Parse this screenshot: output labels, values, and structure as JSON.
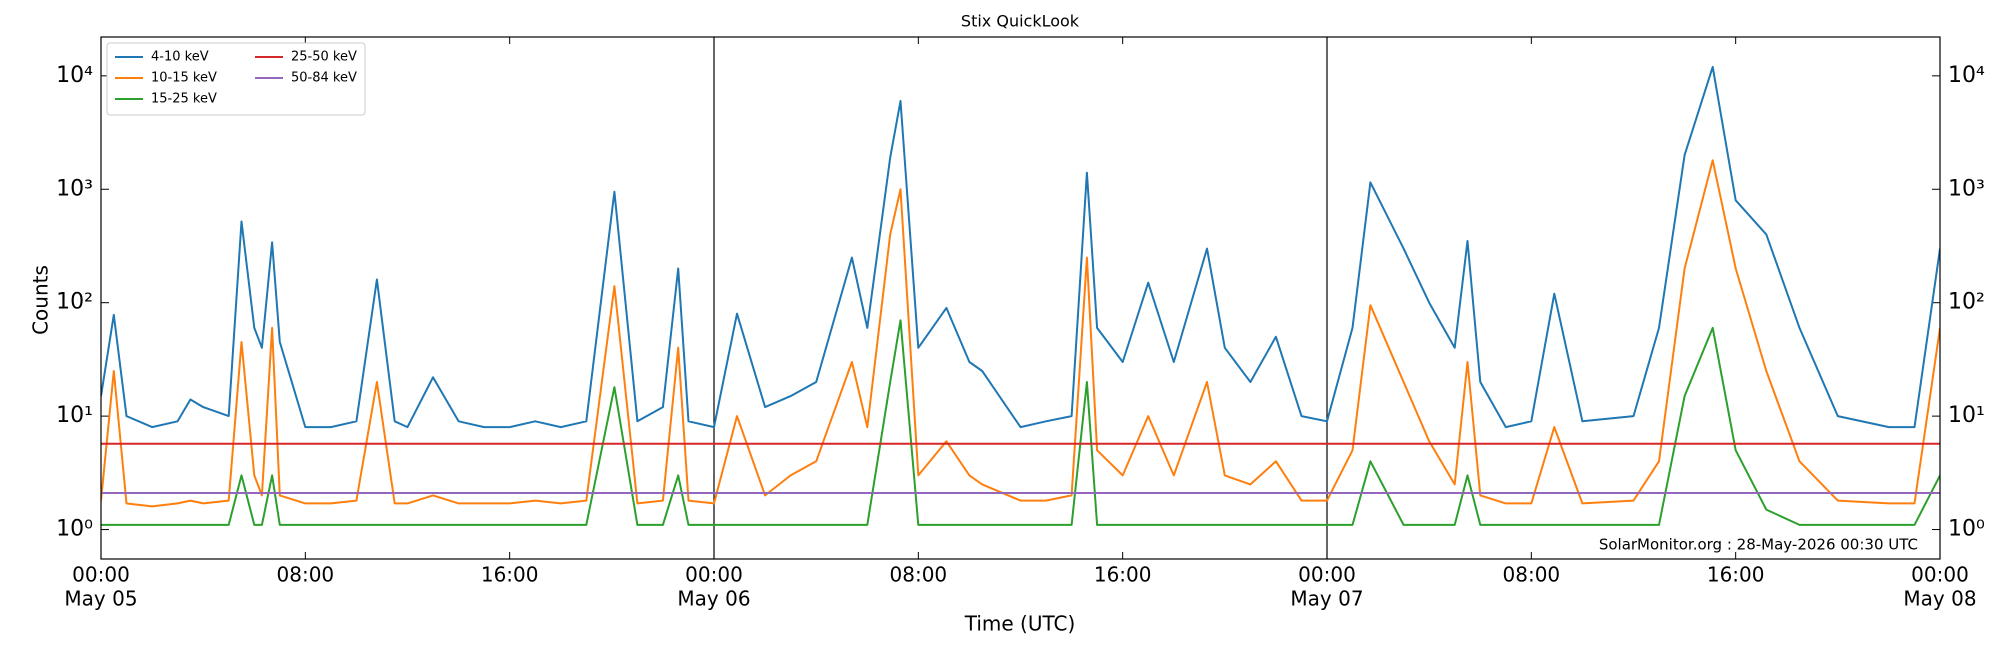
{
  "chart_data": {
    "type": "line",
    "title": "Stix QuickLook",
    "xlabel": "Time (UTC)",
    "ylabel": "Counts",
    "annotation": "SolarMonitor.org : 28-May-2026 00:30 UTC",
    "log_y": true,
    "legend": "upper left",
    "xlim": [
      0,
      72
    ],
    "ylim": [
      0.55,
      22000
    ],
    "xticks": [
      {
        "value": 0,
        "label": "00:00"
      },
      {
        "value": 8,
        "label": "08:00"
      },
      {
        "value": 16,
        "label": "16:00"
      },
      {
        "value": 24,
        "label": "00:00"
      },
      {
        "value": 32,
        "label": "08:00"
      },
      {
        "value": 40,
        "label": "16:00"
      },
      {
        "value": 48,
        "label": "00:00"
      },
      {
        "value": 56,
        "label": "08:00"
      },
      {
        "value": 64,
        "label": "16:00"
      },
      {
        "value": 72,
        "label": "00:00"
      }
    ],
    "date_ticks": [
      {
        "value": 0,
        "label": "May 05"
      },
      {
        "value": 24,
        "label": "May 06"
      },
      {
        "value": 48,
        "label": "May 07"
      },
      {
        "value": 72,
        "label": "May 08"
      }
    ],
    "yticks": [
      {
        "value": 1,
        "label": "10⁰"
      },
      {
        "value": 10,
        "label": "10¹"
      },
      {
        "value": 100,
        "label": "10²"
      },
      {
        "value": 1000,
        "label": "10³"
      },
      {
        "value": 10000,
        "label": "10⁴"
      }
    ],
    "x": [
      0,
      0.5,
      1,
      2,
      3,
      3.5,
      4,
      5,
      5.5,
      6,
      6.3,
      6.7,
      7,
      8,
      9,
      10,
      10.8,
      11.5,
      12,
      13,
      14,
      15,
      16,
      17,
      18,
      19,
      20.1,
      21,
      22,
      22.6,
      23,
      24,
      24.9,
      26,
      27,
      28,
      29.4,
      30,
      30.9,
      31.3,
      32,
      33.1,
      34,
      34.5,
      36,
      37,
      38,
      38.6,
      39,
      40,
      41,
      42,
      43.3,
      44,
      45,
      46,
      47,
      48,
      49,
      49.7,
      51,
      52,
      53,
      53.5,
      54,
      55,
      56,
      56.9,
      58,
      60,
      61,
      62,
      63.1,
      64,
      65.2,
      66.5,
      68,
      70,
      71,
      72
    ],
    "series": [
      {
        "name": "4-10 keV",
        "color": "#1f77b4",
        "values": [
          15,
          78,
          10,
          8,
          9,
          14,
          12,
          10,
          520,
          60,
          40,
          340,
          45,
          8,
          8,
          9,
          160,
          9,
          8,
          22,
          9,
          8,
          8,
          9,
          8,
          9,
          950,
          9,
          12,
          200,
          9,
          8,
          80,
          12,
          15,
          20,
          250,
          60,
          1900,
          6000,
          40,
          90,
          30,
          25,
          8,
          9,
          10,
          1400,
          60,
          30,
          150,
          30,
          300,
          40,
          20,
          50,
          10,
          9,
          60,
          1150,
          300,
          100,
          40,
          350,
          20,
          8,
          9,
          120,
          9,
          10,
          60,
          2000,
          12000,
          800,
          400,
          60,
          10,
          8,
          8,
          300
        ]
      },
      {
        "name": "10-15 keV",
        "color": "#ff7f0e",
        "values": [
          1.8,
          25,
          1.7,
          1.6,
          1.7,
          1.8,
          1.7,
          1.8,
          45,
          3,
          2,
          60,
          2,
          1.7,
          1.7,
          1.8,
          20,
          1.7,
          1.7,
          2,
          1.7,
          1.7,
          1.7,
          1.8,
          1.7,
          1.8,
          140,
          1.7,
          1.8,
          40,
          1.8,
          1.7,
          10,
          2,
          3,
          4,
          30,
          8,
          400,
          1000,
          3,
          6,
          3,
          2.5,
          1.8,
          1.8,
          2,
          250,
          5,
          3,
          10,
          3,
          20,
          3,
          2.5,
          4,
          1.8,
          1.8,
          5,
          95,
          20,
          6,
          2.5,
          30,
          2,
          1.7,
          1.7,
          8,
          1.7,
          1.8,
          4,
          200,
          1800,
          200,
          25,
          4,
          1.8,
          1.7,
          1.7,
          60
        ]
      },
      {
        "name": "15-25 keV",
        "color": "#2ca02c",
        "values": [
          1.1,
          1.1,
          1.1,
          1.1,
          1.1,
          1.1,
          1.1,
          1.1,
          3,
          1.1,
          1.1,
          3,
          1.1,
          1.1,
          1.1,
          1.1,
          1.1,
          1.1,
          1.1,
          1.1,
          1.1,
          1.1,
          1.1,
          1.1,
          1.1,
          1.1,
          18,
          1.1,
          1.1,
          3,
          1.1,
          1.1,
          1.1,
          1.1,
          1.1,
          1.1,
          1.1,
          1.1,
          20,
          70,
          1.1,
          1.1,
          1.1,
          1.1,
          1.1,
          1.1,
          1.1,
          20,
          1.1,
          1.1,
          1.1,
          1.1,
          1.1,
          1.1,
          1.1,
          1.1,
          1.1,
          1.1,
          1.1,
          4,
          1.1,
          1.1,
          1.1,
          3,
          1.1,
          1.1,
          1.1,
          1.1,
          1.1,
          1.1,
          1.1,
          15,
          60,
          5,
          1.5,
          1.1,
          1.1,
          1.1,
          1.1,
          3
        ]
      },
      {
        "name": "25-50 keV",
        "color": "#d62728",
        "values": [
          5.7,
          5.7,
          5.7,
          5.7,
          5.7,
          5.7,
          5.7,
          5.7,
          5.7,
          5.7,
          5.7,
          5.7,
          5.7,
          5.7,
          5.7,
          5.7,
          5.7,
          5.7,
          5.7,
          5.7,
          5.7,
          5.7,
          5.7,
          5.7,
          5.7,
          5.7,
          5.7,
          5.7,
          5.7,
          5.7,
          5.7,
          5.7,
          5.7,
          5.7,
          5.7,
          5.7,
          5.7,
          5.7,
          5.7,
          5.7,
          5.7,
          5.7,
          5.7,
          5.7,
          5.7,
          5.7,
          5.7,
          5.7,
          5.7,
          5.7,
          5.7,
          5.7,
          5.7,
          5.7,
          5.7,
          5.7,
          5.7,
          5.7,
          5.7,
          5.7,
          5.7,
          5.7,
          5.7,
          5.7,
          5.7,
          5.7,
          5.7,
          5.7,
          5.7,
          5.7,
          5.7,
          5.7,
          5.7,
          5.7,
          5.7,
          5.7,
          5.7,
          5.7,
          5.7,
          5.7
        ]
      },
      {
        "name": "50-84 keV",
        "color": "#9467bd",
        "values": [
          2.1,
          2.1,
          2.1,
          2.1,
          2.1,
          2.1,
          2.1,
          2.1,
          2.1,
          2.1,
          2.1,
          2.1,
          2.1,
          2.1,
          2.1,
          2.1,
          2.1,
          2.1,
          2.1,
          2.1,
          2.1,
          2.1,
          2.1,
          2.1,
          2.1,
          2.1,
          2.1,
          2.1,
          2.1,
          2.1,
          2.1,
          2.1,
          2.1,
          2.1,
          2.1,
          2.1,
          2.1,
          2.1,
          2.1,
          2.1,
          2.1,
          2.1,
          2.1,
          2.1,
          2.1,
          2.1,
          2.1,
          2.1,
          2.1,
          2.1,
          2.1,
          2.1,
          2.1,
          2.1,
          2.1,
          2.1,
          2.1,
          2.1,
          2.1,
          2.1,
          2.1,
          2.1,
          2.1,
          2.1,
          2.1,
          2.1,
          2.1,
          2.1,
          2.1,
          2.1,
          2.1,
          2.1,
          2.1,
          2.1,
          2.1,
          2.1,
          2.1,
          2.1,
          2.1,
          2.1
        ]
      }
    ]
  }
}
